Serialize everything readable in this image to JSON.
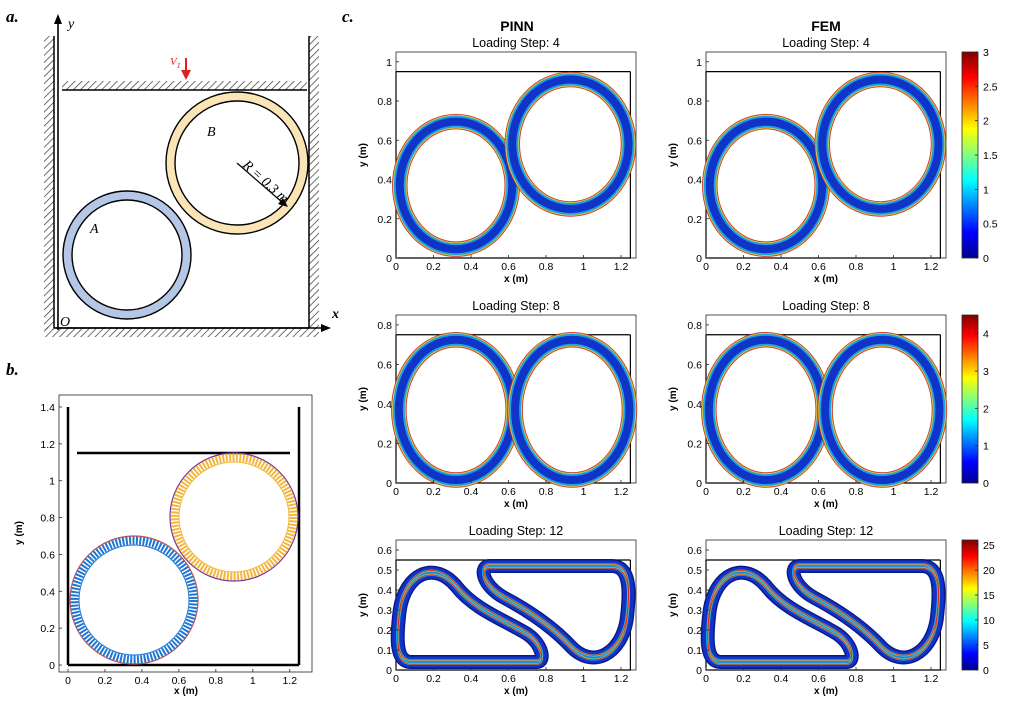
{
  "panel_labels": {
    "a": "a.",
    "b": "b.",
    "c": "c."
  },
  "schematic": {
    "y_axis": "y",
    "x_axis": "x",
    "origin": "O",
    "load_label": "V",
    "load_sub": "1",
    "ring_a": "A",
    "ring_b": "B",
    "radius_label": "R = 0.3 m"
  },
  "mesh_panel": {
    "xlabel": "x (m)",
    "ylabel": "y (m)",
    "xticks": [
      "0",
      "0.2",
      "0.4",
      "0.6",
      "0.8",
      "1",
      "1.2"
    ],
    "yticks": [
      "0",
      "0.2",
      "0.4",
      "0.6",
      "0.8",
      "1",
      "1.2",
      "1.4"
    ]
  },
  "columns": {
    "pinn": "PINN",
    "fem": "FEM"
  },
  "rows": [
    {
      "title": "Loading Step: 4",
      "xlabel": "x (m)",
      "ylabel": "y (m)",
      "xticks": [
        "0",
        "0.2",
        "0.4",
        "0.6",
        "0.8",
        "1",
        "1.2"
      ],
      "yticks": [
        "0",
        "0.2",
        "0.4",
        "0.6",
        "0.8",
        "1"
      ],
      "colorbar": [
        "0",
        "0.5",
        "1",
        "1.5",
        "2",
        "2.5",
        "3"
      ]
    },
    {
      "title": "Loading Step: 8",
      "xlabel": "x (m)",
      "ylabel": "y (m)",
      "xticks": [
        "0",
        "0.2",
        "0.4",
        "0.6",
        "0.8",
        "1",
        "1.2"
      ],
      "yticks": [
        "0",
        "0.2",
        "0.4",
        "0.6",
        "0.8"
      ],
      "colorbar": [
        "0",
        "1",
        "2",
        "3",
        "4"
      ]
    },
    {
      "title": "Loading Step: 12",
      "xlabel": "x (m)",
      "ylabel": "y (m)",
      "xticks": [
        "0",
        "0.2",
        "0.4",
        "0.6",
        "0.8",
        "1",
        "1.2"
      ],
      "yticks": [
        "0",
        "0.1",
        "0.2",
        "0.3",
        "0.4",
        "0.5",
        "0.6"
      ],
      "colorbar": [
        "0",
        "5",
        "10",
        "15",
        "20",
        "25"
      ]
    }
  ],
  "colors": {
    "ring_a_fill": "#b4c7e7",
    "ring_b_fill": "#fbe5b6",
    "mesh_blue": "#1f77d4",
    "mesh_orange": "#f2b63c",
    "ring_dark": "#0a1a8c",
    "ring_mid": "#19c0e6",
    "ring_edge": "#c81e10",
    "load_arrow": "#e02020"
  }
}
